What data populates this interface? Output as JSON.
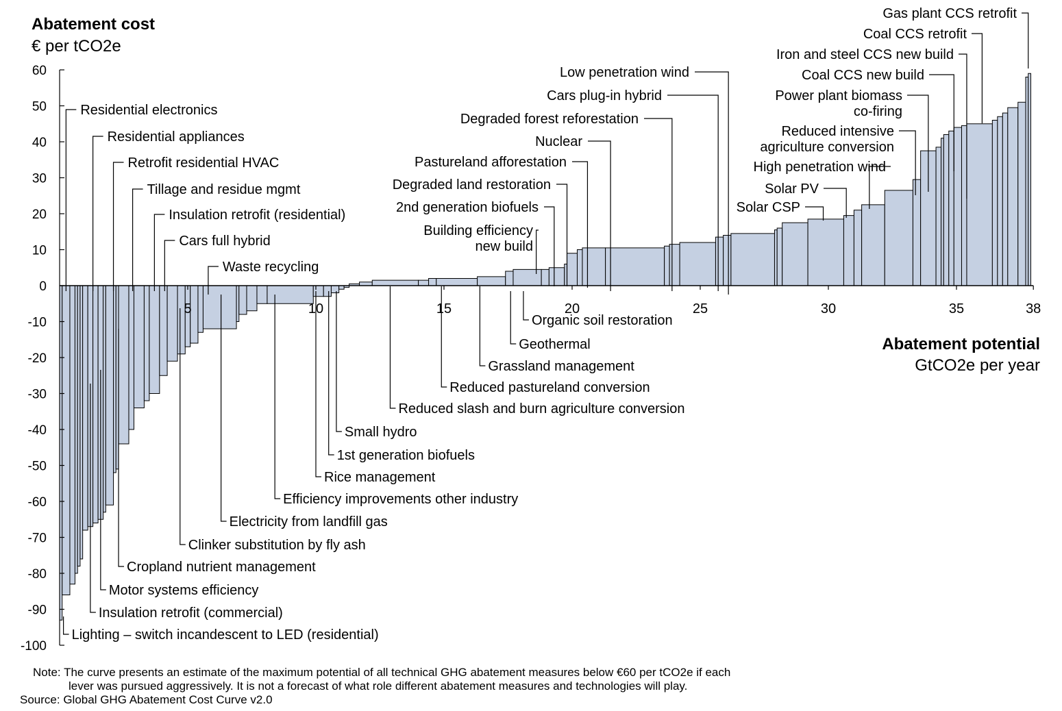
{
  "chart_data": {
    "type": "bar",
    "subtype": "marginal-abatement-cost-curve",
    "y_title": "Abatement cost",
    "y_unit": "€ per tCO2e",
    "x_title": "Abatement potential",
    "x_unit": "GtCO2e per year",
    "ylim": [
      -100,
      60
    ],
    "xlim": [
      0,
      38
    ],
    "y_ticks": [
      "60",
      "50",
      "40",
      "30",
      "20",
      "10",
      "0",
      "-10",
      "-20",
      "-30",
      "-40",
      "-50",
      "-60",
      "-70",
      "-80",
      "-90",
      "-100"
    ],
    "x_ticks": [
      "5",
      "10",
      "15",
      "20",
      "25",
      "30",
      "35",
      "38"
    ],
    "grid": false,
    "bars": [
      {
        "x0": 0.0,
        "x1": 0.1,
        "y": -93
      },
      {
        "x0": 0.1,
        "x1": 0.4,
        "y": -86
      },
      {
        "x0": 0.4,
        "x1": 0.6,
        "y": -83
      },
      {
        "x0": 0.6,
        "x1": 0.7,
        "y": -80
      },
      {
        "x0": 0.7,
        "x1": 0.8,
        "y": -78
      },
      {
        "x0": 0.8,
        "x1": 0.9,
        "y": -76
      },
      {
        "x0": 0.9,
        "x1": 1.1,
        "y": -68
      },
      {
        "x0": 1.1,
        "x1": 1.3,
        "y": -67
      },
      {
        "x0": 1.3,
        "x1": 1.5,
        "y": -66
      },
      {
        "x0": 1.5,
        "x1": 1.7,
        "y": -65
      },
      {
        "x0": 1.7,
        "x1": 1.8,
        "y": -63
      },
      {
        "x0": 1.8,
        "x1": 2.1,
        "y": -61
      },
      {
        "x0": 2.1,
        "x1": 2.2,
        "y": -52
      },
      {
        "x0": 2.2,
        "x1": 2.3,
        "y": -51
      },
      {
        "x0": 2.3,
        "x1": 2.7,
        "y": -44
      },
      {
        "x0": 2.7,
        "x1": 2.9,
        "y": -40
      },
      {
        "x0": 2.9,
        "x1": 3.3,
        "y": -34
      },
      {
        "x0": 3.3,
        "x1": 3.5,
        "y": -32
      },
      {
        "x0": 3.5,
        "x1": 3.9,
        "y": -30
      },
      {
        "x0": 3.9,
        "x1": 4.2,
        "y": -25
      },
      {
        "x0": 4.2,
        "x1": 4.6,
        "y": -21
      },
      {
        "x0": 4.6,
        "x1": 4.9,
        "y": -19
      },
      {
        "x0": 4.9,
        "x1": 5.1,
        "y": -17
      },
      {
        "x0": 5.1,
        "x1": 5.4,
        "y": -16
      },
      {
        "x0": 5.4,
        "x1": 5.6,
        "y": -13
      },
      {
        "x0": 5.6,
        "x1": 6.9,
        "y": -12
      },
      {
        "x0": 6.9,
        "x1": 7.0,
        "y": -10
      },
      {
        "x0": 7.0,
        "x1": 7.3,
        "y": -8
      },
      {
        "x0": 7.3,
        "x1": 7.7,
        "y": -7
      },
      {
        "x0": 7.7,
        "x1": 8.1,
        "y": -5
      },
      {
        "x0": 8.1,
        "x1": 9.9,
        "y": -5
      },
      {
        "x0": 9.9,
        "x1": 10.3,
        "y": -3
      },
      {
        "x0": 10.3,
        "x1": 10.6,
        "y": -3
      },
      {
        "x0": 10.6,
        "x1": 10.9,
        "y": -2
      },
      {
        "x0": 10.9,
        "x1": 11.1,
        "y": -1
      },
      {
        "x0": 11.1,
        "x1": 11.3,
        "y": -0.5
      },
      {
        "x0": 11.3,
        "x1": 11.7,
        "y": 0.5
      },
      {
        "x0": 11.7,
        "x1": 12.2,
        "y": 1
      },
      {
        "x0": 12.2,
        "x1": 14.0,
        "y": 1.5
      },
      {
        "x0": 14.0,
        "x1": 14.4,
        "y": 1.5
      },
      {
        "x0": 14.4,
        "x1": 14.7,
        "y": 2
      },
      {
        "x0": 14.7,
        "x1": 16.3,
        "y": 2
      },
      {
        "x0": 16.3,
        "x1": 17.4,
        "y": 2.5
      },
      {
        "x0": 17.4,
        "x1": 17.7,
        "y": 4
      },
      {
        "x0": 17.7,
        "x1": 18.8,
        "y": 4.5
      },
      {
        "x0": 18.8,
        "x1": 19.1,
        "y": 4.5
      },
      {
        "x0": 19.1,
        "x1": 19.7,
        "y": 5
      },
      {
        "x0": 19.7,
        "x1": 19.8,
        "y": 6
      },
      {
        "x0": 19.8,
        "x1": 20.2,
        "y": 9
      },
      {
        "x0": 20.2,
        "x1": 20.4,
        "y": 10
      },
      {
        "x0": 20.4,
        "x1": 21.3,
        "y": 10.5
      },
      {
        "x0": 21.3,
        "x1": 23.6,
        "y": 10.5
      },
      {
        "x0": 23.6,
        "x1": 23.8,
        "y": 11
      },
      {
        "x0": 23.8,
        "x1": 24.2,
        "y": 11.5
      },
      {
        "x0": 24.2,
        "x1": 25.6,
        "y": 12
      },
      {
        "x0": 25.6,
        "x1": 25.9,
        "y": 13.5
      },
      {
        "x0": 25.9,
        "x1": 26.2,
        "y": 14
      },
      {
        "x0": 26.2,
        "x1": 27.9,
        "y": 14.5
      },
      {
        "x0": 27.9,
        "x1": 28.0,
        "y": 15.5
      },
      {
        "x0": 28.0,
        "x1": 28.2,
        "y": 16
      },
      {
        "x0": 28.2,
        "x1": 29.2,
        "y": 17.5
      },
      {
        "x0": 29.2,
        "x1": 30.6,
        "y": 18.5
      },
      {
        "x0": 30.6,
        "x1": 31.0,
        "y": 19.5
      },
      {
        "x0": 31.0,
        "x1": 31.3,
        "y": 21
      },
      {
        "x0": 31.3,
        "x1": 32.2,
        "y": 22.5
      },
      {
        "x0": 32.2,
        "x1": 33.3,
        "y": 26.5
      },
      {
        "x0": 33.3,
        "x1": 33.6,
        "y": 29.5
      },
      {
        "x0": 33.6,
        "x1": 34.2,
        "y": 37.5
      },
      {
        "x0": 34.2,
        "x1": 34.4,
        "y": 38.5
      },
      {
        "x0": 34.4,
        "x1": 34.5,
        "y": 41
      },
      {
        "x0": 34.5,
        "x1": 34.7,
        "y": 42
      },
      {
        "x0": 34.7,
        "x1": 34.9,
        "y": 43
      },
      {
        "x0": 34.9,
        "x1": 35.2,
        "y": 44
      },
      {
        "x0": 35.2,
        "x1": 35.4,
        "y": 44.5
      },
      {
        "x0": 35.4,
        "x1": 36.4,
        "y": 45
      },
      {
        "x0": 36.4,
        "x1": 36.6,
        "y": 46
      },
      {
        "x0": 36.6,
        "x1": 36.8,
        "y": 47
      },
      {
        "x0": 36.8,
        "x1": 37.0,
        "y": 48
      },
      {
        "x0": 37.0,
        "x1": 37.4,
        "y": 49.5
      },
      {
        "x0": 37.4,
        "x1": 37.7,
        "y": 51
      },
      {
        "x0": 37.7,
        "x1": 37.8,
        "y": 58
      },
      {
        "x0": 37.8,
        "x1": 37.9,
        "y": 59
      }
    ],
    "annotations_top": [
      {
        "label": "Residential electronics",
        "x": 0.25
      },
      {
        "label": "Residential appliances",
        "x": 1.3
      },
      {
        "label": "Retrofit residential HVAC",
        "x": 2.1
      },
      {
        "label": "Tillage and residue mgmt",
        "x": 2.85
      },
      {
        "label": "Insulation retrofit (residential)",
        "x": 3.7
      },
      {
        "label": "Cars full hybrid",
        "x": 4.1
      },
      {
        "label": "Waste recycling",
        "x": 5.8
      }
    ],
    "annotations_mid": [
      {
        "label": "Low penetration wind",
        "x": 26.1
      },
      {
        "label": "Cars plug-in hybrid",
        "x": 25.7
      },
      {
        "label": "Degraded forest reforestation",
        "x": 23.9
      },
      {
        "label": "Nuclear",
        "x": 21.5
      },
      {
        "label": "Pastureland afforestation",
        "x": 20.6
      },
      {
        "label": "Degraded land restoration",
        "x": 19.8
      },
      {
        "label": "2nd generation biofuels",
        "x": 19.3
      },
      {
        "label": "Building efficiency",
        "label2": "new build",
        "x": 18.6
      }
    ],
    "annotations_right": [
      {
        "label": "Gas plant CCS retrofit",
        "x": 37.8
      },
      {
        "label": "Coal CCS retrofit",
        "x": 36.0
      },
      {
        "label": "Iron and steel CCS new build",
        "x": 35.4
      },
      {
        "label": "Coal CCS new build",
        "x": 34.9
      },
      {
        "label": "Power plant biomass",
        "label2": "co-firing",
        "x": 33.9
      },
      {
        "label": "Reduced intensive",
        "label2": "agriculture conversion",
        "x": 33.4
      },
      {
        "label": "High penetration wind",
        "x": 31.6
      },
      {
        "label": "Solar PV",
        "x": 30.7
      },
      {
        "label": "Solar CSP",
        "x": 29.8
      }
    ],
    "annotations_bottom": [
      {
        "label": "Organic soil restoration",
        "x": 18.1
      },
      {
        "label": "Geothermal",
        "x": 17.6
      },
      {
        "label": "Grassland management",
        "x": 16.4
      },
      {
        "label": "Reduced pastureland conversion",
        "x": 14.9
      },
      {
        "label": "Reduced slash and burn agriculture conversion",
        "x": 12.9
      },
      {
        "label": "Small hydro",
        "x": 10.8
      },
      {
        "label": "1st generation biofuels",
        "x": 10.5
      },
      {
        "label": "Rice management",
        "x": 10.0
      },
      {
        "label": "Efficiency improvements other industry",
        "x": 8.4
      },
      {
        "label": "Electricity from landfill gas",
        "x": 6.3
      },
      {
        "label": "Clinker substitution by fly ash",
        "x": 4.7
      },
      {
        "label": "Cropland nutrient management",
        "x": 2.3
      },
      {
        "label": "Motor systems efficiency",
        "x": 1.6
      },
      {
        "label": "Insulation retrofit (commercial)",
        "x": 1.2
      },
      {
        "label": "Lighting – switch incandescent to LED (residential)",
        "x": 0.15
      }
    ]
  },
  "footer": {
    "note_label": "Note:",
    "note_line1": "The curve presents an estimate of the maximum potential of all technical GHG abatement measures below €60 per tCO2e if each",
    "note_line2": "lever was pursued aggressively. It is not a forecast of what role different abatement measures and technologies will play.",
    "source_label": "Source:",
    "source_text": "Global GHG Abatement Cost Curve v2.0"
  },
  "colors": {
    "bar_fill": "#c5d0e2",
    "bar_stroke": "#000000"
  }
}
